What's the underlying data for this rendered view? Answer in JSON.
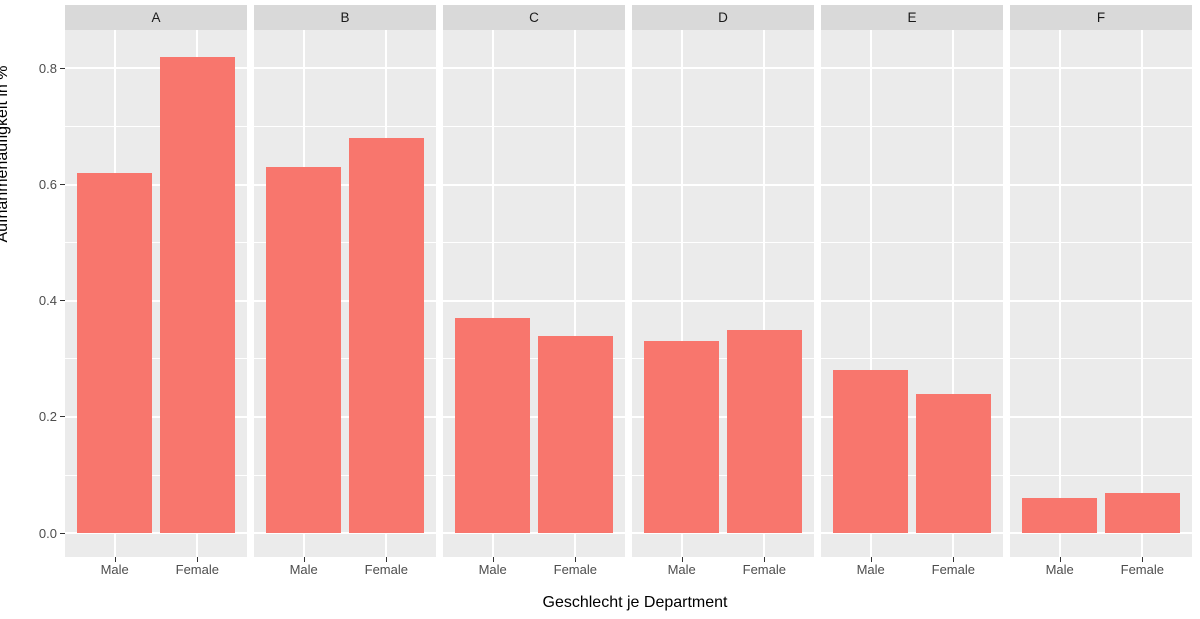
{
  "chart_data": {
    "type": "bar",
    "title": "",
    "xlabel": "Geschlecht je Department",
    "ylabel": "Aufnahmehäufigkeit in %",
    "categories": [
      "Male",
      "Female"
    ],
    "facets": [
      {
        "label": "A",
        "values": [
          0.62,
          0.82
        ]
      },
      {
        "label": "B",
        "values": [
          0.63,
          0.68
        ]
      },
      {
        "label": "C",
        "values": [
          0.37,
          0.34
        ]
      },
      {
        "label": "D",
        "values": [
          0.33,
          0.35
        ]
      },
      {
        "label": "E",
        "values": [
          0.28,
          0.24
        ]
      },
      {
        "label": "F",
        "values": [
          0.06,
          0.07
        ]
      }
    ],
    "y_ticks": [
      0.0,
      0.2,
      0.4,
      0.6,
      0.8
    ],
    "y_tick_labels": [
      "0.0",
      "0.2",
      "0.4",
      "0.6",
      "0.8"
    ],
    "y_minor_ticks": [
      0.1,
      0.3,
      0.5,
      0.7
    ],
    "ylim": [
      -0.041,
      0.866
    ],
    "grid": true,
    "legend_position": "none",
    "colors": {
      "bar_fill": "#F8766D",
      "panel_background": "#EBEBEB",
      "strip_background": "#D9D9D9",
      "gridline": "#FFFFFF",
      "axis_text": "#4D4D4D",
      "tick_mark": "#333333",
      "title_text": "#000000",
      "page_background": "#FFFFFF"
    }
  }
}
